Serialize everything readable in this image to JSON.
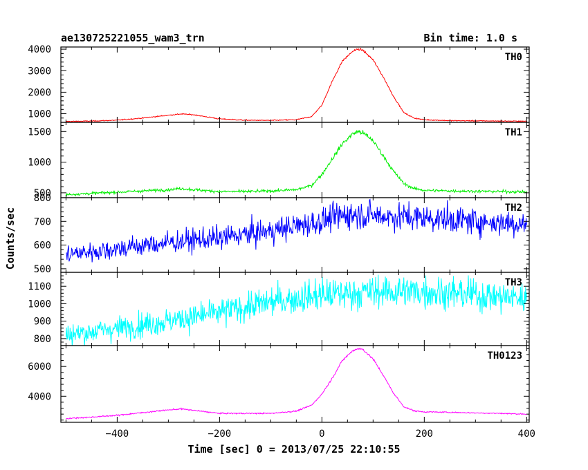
{
  "header": {
    "title": "ae130725221055_wam3_trn",
    "bin_time": "Bin time: 1.0 s"
  },
  "chart_data": {
    "type": "line",
    "title": "ae130725221055_wam3_trn",
    "xlabel": "Time [sec] 0 = 2013/07/25 22:10:55",
    "ylabel": "Counts/sec",
    "xlim": [
      -510,
      405
    ],
    "x_ticks": [
      -400,
      -200,
      0,
      200,
      400
    ],
    "x_tick_labels": [
      "−400",
      "−200",
      "0",
      "200",
      "400"
    ],
    "grid": false,
    "panels": [
      {
        "name": "TH0",
        "color": "#ff0000",
        "ylim": [
          600,
          4100
        ],
        "y_ticks": [
          1000,
          2000,
          3000,
          4000
        ],
        "y_tick_labels": [
          "1000",
          "2000",
          "3000",
          "4000"
        ],
        "x": [
          -500,
          -450,
          -400,
          -350,
          -300,
          -275,
          -250,
          -200,
          -150,
          -100,
          -50,
          -20,
          0,
          20,
          40,
          60,
          70,
          80,
          100,
          120,
          140,
          160,
          180,
          200,
          250,
          300,
          350,
          400
        ],
        "values": [
          640,
          660,
          700,
          800,
          930,
          990,
          950,
          760,
          700,
          690,
          720,
          870,
          1400,
          2500,
          3450,
          3900,
          4000,
          3950,
          3500,
          2700,
          1800,
          1050,
          800,
          720,
          680,
          670,
          660,
          650
        ],
        "noise": 35
      },
      {
        "name": "TH1",
        "color": "#00ee00",
        "ylim": [
          420,
          1650
        ],
        "y_ticks": [
          500,
          1000,
          1500
        ],
        "y_tick_labels": [
          "500",
          "1000",
          "1500"
        ],
        "x": [
          -500,
          -450,
          -400,
          -350,
          -300,
          -275,
          -250,
          -200,
          -150,
          -100,
          -50,
          -20,
          0,
          20,
          40,
          60,
          70,
          80,
          100,
          120,
          140,
          160,
          180,
          200,
          250,
          300,
          350,
          400
        ],
        "values": [
          470,
          490,
          510,
          530,
          550,
          570,
          550,
          520,
          520,
          530,
          550,
          620,
          800,
          1050,
          1300,
          1460,
          1500,
          1480,
          1350,
          1100,
          850,
          650,
          570,
          540,
          530,
          525,
          520,
          515
        ],
        "noise": 35
      },
      {
        "name": "TH2",
        "color": "#0000ff",
        "ylim": [
          485,
          800
        ],
        "y_ticks": [
          500,
          600,
          700,
          800
        ],
        "y_tick_labels": [
          "500",
          "600",
          "700",
          "800"
        ],
        "x": [
          -500,
          -400,
          -300,
          -200,
          -100,
          0,
          50,
          100,
          200,
          300,
          400
        ],
        "values": [
          560,
          585,
          610,
          630,
          660,
          700,
          730,
          725,
          715,
          700,
          690
        ],
        "noise": 55
      },
      {
        "name": "TH3",
        "color": "#00ffff",
        "ylim": [
          760,
          1180
        ],
        "y_ticks": [
          800,
          900,
          1000,
          1100
        ],
        "y_tick_labels": [
          "800",
          "900",
          "1000",
          "1100"
        ],
        "x": [
          -500,
          -400,
          -300,
          -200,
          -100,
          0,
          100,
          200,
          300,
          400
        ],
        "values": [
          820,
          860,
          900,
          950,
          1010,
          1050,
          1070,
          1070,
          1050,
          1030
        ],
        "noise": 90
      },
      {
        "name": "TH0123",
        "color": "#ff00ff",
        "ylim": [
          2250,
          7400
        ],
        "y_ticks": [
          4000,
          6000
        ],
        "y_tick_labels": [
          "4000",
          "6000"
        ],
        "x": [
          -500,
          -450,
          -400,
          -350,
          -300,
          -275,
          -250,
          -200,
          -150,
          -100,
          -50,
          -20,
          0,
          20,
          40,
          60,
          70,
          80,
          100,
          120,
          140,
          160,
          180,
          200,
          250,
          300,
          350,
          400
        ],
        "values": [
          2500,
          2600,
          2720,
          2900,
          3080,
          3150,
          3050,
          2850,
          2850,
          2850,
          3000,
          3400,
          4150,
          5200,
          6400,
          7050,
          7200,
          7150,
          6500,
          5400,
          4200,
          3300,
          3020,
          2950,
          2920,
          2880,
          2850,
          2800
        ],
        "noise": 60
      }
    ]
  }
}
